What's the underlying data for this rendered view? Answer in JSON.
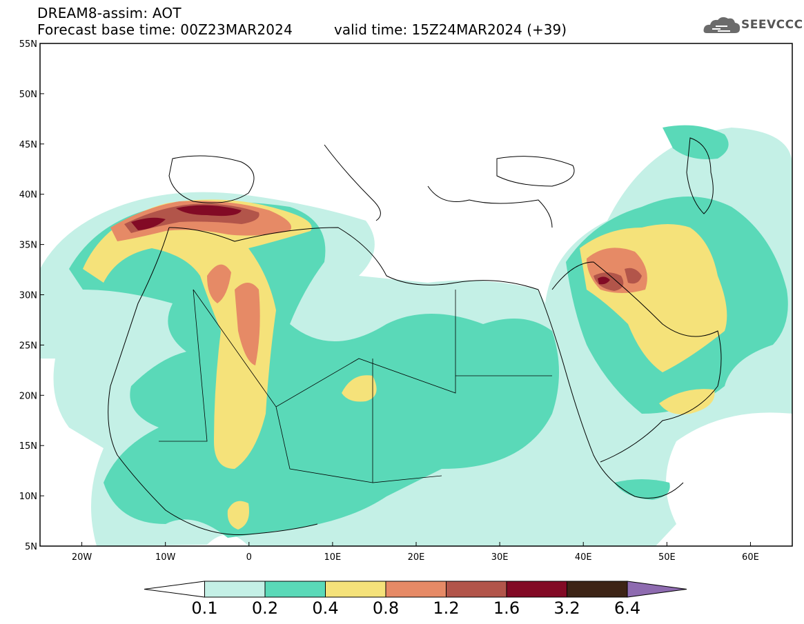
{
  "header": {
    "title_line_1": "DREAM8-assim: AOT",
    "title_line_2": "Forecast base time: 00Z23MAR2024",
    "valid_time": "valid time: 15Z24MAR2024 (+39)",
    "logo_text": "SEEVCCC"
  },
  "axes": {
    "lat_labels": [
      "55N",
      "50N",
      "45N",
      "40N",
      "35N",
      "30N",
      "25N",
      "20N",
      "15N",
      "10N",
      "5N"
    ],
    "lon_labels": [
      "20W",
      "10W",
      "0",
      "10E",
      "20E",
      "30E",
      "40E",
      "50E",
      "60E"
    ],
    "lon_range": [
      -25,
      65
    ],
    "lat_range": [
      5,
      55
    ]
  },
  "colorbar": {
    "labels": [
      "0.1",
      "0.2",
      "0.4",
      "0.8",
      "1.2",
      "1.6",
      "3.2",
      "6.4"
    ],
    "colors": [
      "#c4f0e6",
      "#5ad9b8",
      "#f5e27a",
      "#e68a66",
      "#b2554a",
      "#820a25",
      "#3d2416",
      "#8e6bb0"
    ]
  },
  "colors": {
    "aot_0_1": "#c4f0e6",
    "aot_0_2": "#5ad9b8",
    "aot_0_4": "#f5e27a",
    "aot_0_8": "#e68a66",
    "aot_1_2": "#b2554a",
    "aot_1_6": "#820a25",
    "aot_3_2": "#3d2416",
    "aot_6_4": "#8e6bb0"
  }
}
